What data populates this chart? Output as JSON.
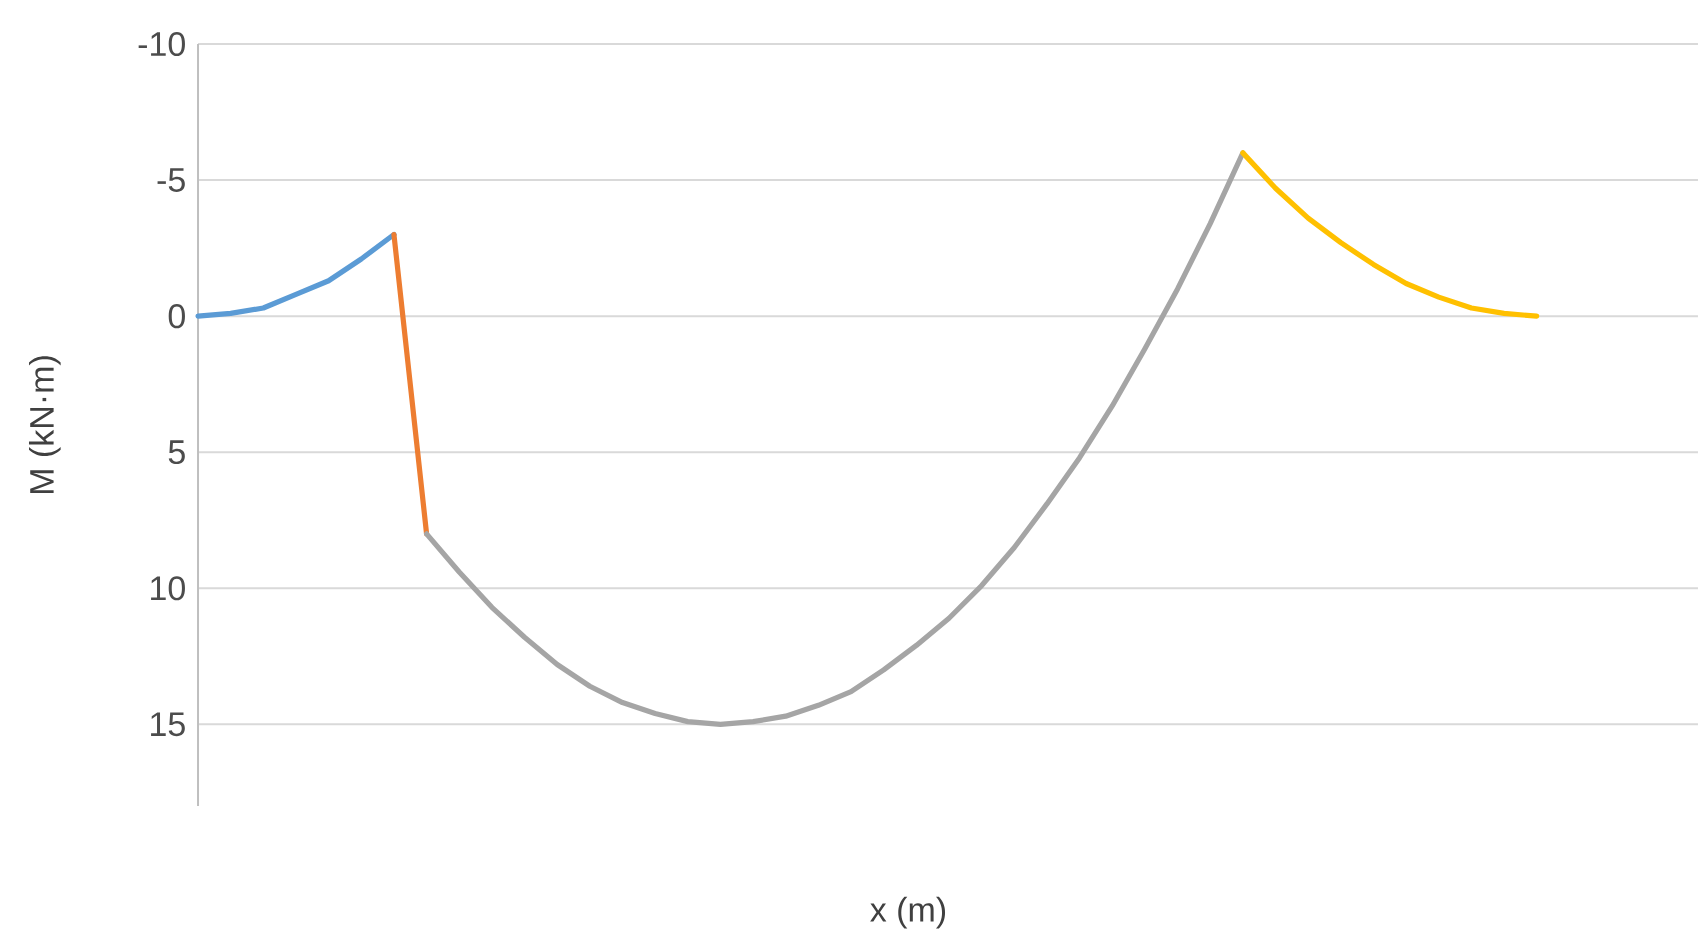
{
  "chart_data": {
    "type": "line",
    "xlabel": "x (m)",
    "ylabel": "M (kN·m)",
    "categories": [
      null,
      null,
      null,
      null,
      null,
      null,
      null,
      null,
      null,
      null,
      null,
      null,
      null,
      null,
      null,
      null,
      null,
      null,
      null,
      null,
      null,
      null,
      null,
      null,
      null,
      null,
      null,
      null,
      null,
      null,
      null,
      null,
      null,
      null,
      null,
      null,
      null,
      null,
      null,
      null,
      null,
      null,
      null,
      null,
      null,
      null,
      null
    ],
    "series": [
      {
        "color": "#5b9bd5",
        "values": [
          0,
          -0.1,
          -0.3,
          -0.8,
          -1.3,
          -2.1,
          -3,
          null,
          null,
          null,
          null,
          null,
          null,
          null,
          null,
          null,
          null,
          null,
          null,
          null,
          null,
          null,
          null,
          null,
          null,
          null,
          null,
          null,
          null,
          null,
          null,
          null,
          null,
          null,
          null,
          null,
          null,
          null,
          null,
          null,
          null,
          null,
          null,
          null,
          null,
          null,
          null
        ]
      },
      {
        "color": "#ed7d31",
        "values": [
          null,
          null,
          null,
          null,
          null,
          null,
          -3,
          8,
          null,
          null,
          null,
          null,
          null,
          null,
          null,
          null,
          null,
          null,
          null,
          null,
          null,
          null,
          null,
          null,
          null,
          null,
          null,
          null,
          null,
          null,
          null,
          null,
          null,
          null,
          null,
          null,
          null,
          null,
          null,
          null,
          null,
          null,
          null,
          null,
          null,
          null,
          null
        ]
      },
      {
        "color": "#a5a5a5",
        "values": [
          null,
          null,
          null,
          null,
          null,
          null,
          null,
          8,
          9.4,
          10.7,
          11.8,
          12.8,
          13.6,
          14.2,
          14.6,
          14.9,
          15,
          14.9,
          14.7,
          14.3,
          13.8,
          13,
          12.1,
          11.1,
          9.9,
          8.5,
          6.9,
          5.2,
          3.3,
          1.2,
          -1,
          -3.4,
          -6,
          null,
          null,
          null,
          null,
          null,
          null,
          null,
          null,
          null,
          null,
          null,
          null,
          null,
          null
        ]
      },
      {
        "color": "#ffc000",
        "values": [
          null,
          null,
          null,
          null,
          null,
          null,
          null,
          null,
          null,
          null,
          null,
          null,
          null,
          null,
          null,
          null,
          null,
          null,
          null,
          null,
          null,
          null,
          null,
          null,
          null,
          null,
          null,
          null,
          null,
          null,
          null,
          null,
          -6,
          -4.7,
          -3.6,
          -2.7,
          -1.9,
          -1.2,
          -0.7,
          -0.3,
          -0.1,
          0,
          null,
          null,
          null,
          null,
          null
        ]
      }
    ],
    "ylim": [
      18,
      -10
    ],
    "yticks": [
      -10,
      -5,
      0,
      5,
      10,
      15
    ],
    "grid": "y",
    "tick_labels": "y",
    "marker": "none",
    "line_style": "solid"
  }
}
